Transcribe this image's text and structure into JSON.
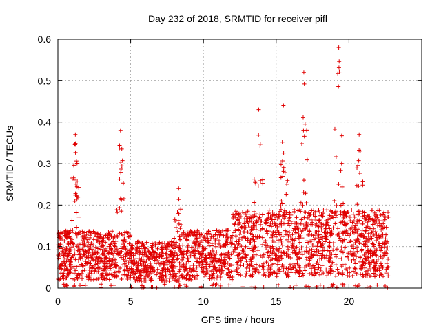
{
  "chart_data": {
    "type": "scatter",
    "title": "Day 232 of 2018, SRMTID for receiver pifl",
    "xlabel": "GPS time / hours",
    "ylabel": "SRMTID / TECUs",
    "xlim": [
      0,
      25
    ],
    "ylim": [
      0,
      0.6
    ],
    "xticks": [
      0,
      5,
      10,
      15,
      20
    ],
    "xtick_labels": [
      "0",
      "5",
      "10",
      "15",
      "20"
    ],
    "yticks": [
      0,
      0.1,
      0.2,
      0.3,
      0.4,
      0.5,
      0.6
    ],
    "ytick_labels": [
      "0",
      "0.1",
      "0.2",
      "0.3",
      "0.4",
      "0.5",
      "0.6"
    ],
    "grid": true,
    "marker": "+",
    "color": "#e00000",
    "series": [
      {
        "name": "SRMTID",
        "data_coverage_hours": [
          0,
          22.7
        ],
        "notable_peaks": [
          {
            "x": 1.2,
            "y": 0.37
          },
          {
            "x": 4.3,
            "y": 0.38
          },
          {
            "x": 8.3,
            "y": 0.24
          },
          {
            "x": 13.8,
            "y": 0.43
          },
          {
            "x": 15.5,
            "y": 0.44
          },
          {
            "x": 16.9,
            "y": 0.52
          },
          {
            "x": 19.3,
            "y": 0.58
          },
          {
            "x": 20.7,
            "y": 0.37
          }
        ],
        "baseline_level": 0.08
      }
    ]
  }
}
